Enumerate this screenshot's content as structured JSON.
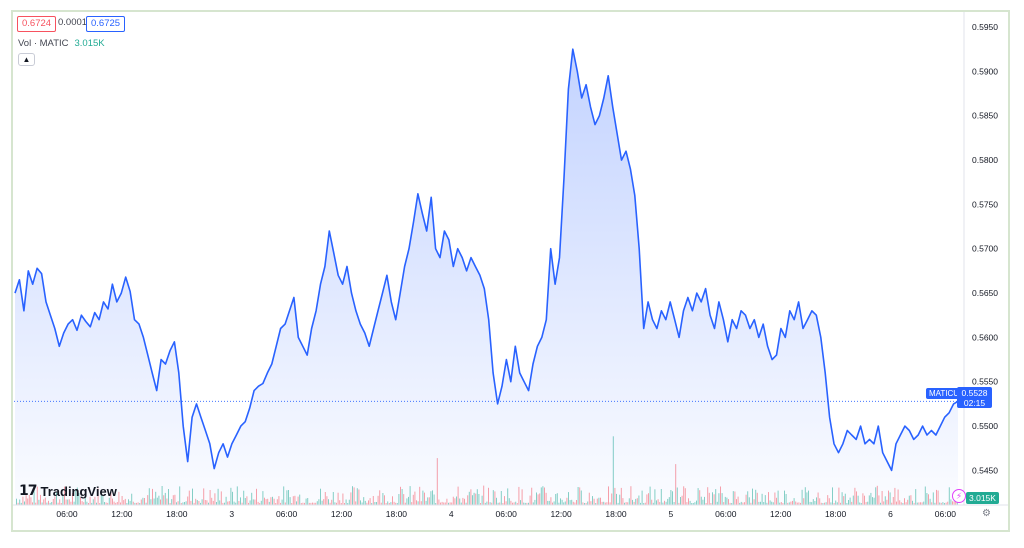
{
  "header": {
    "bid": "0.6724",
    "spread": "0.0001",
    "ask": "0.6725",
    "volume_label": "Vol · MATIC",
    "volume_value": "3.015K"
  },
  "branding": {
    "logo_text": "TradingView"
  },
  "tags": {
    "symbol": "MATICUSD",
    "last_price": "0.5528",
    "countdown": "02:15",
    "volume": "3.015K"
  },
  "colors": {
    "line": "#2962ff",
    "up_volume": "#22ab94",
    "down_volume": "#f7525f",
    "grid": "#f0f3fa"
  },
  "icons": {
    "collapse": "chevron-up-icon",
    "alert": "lightning-icon",
    "settings": "gear-icon"
  },
  "chart_data": {
    "type": "area",
    "series": [
      {
        "name": "MATICUSD",
        "values": [
          0.565,
          0.5665,
          0.563,
          0.5675,
          0.566,
          0.5678,
          0.5672,
          0.564,
          0.5625,
          0.561,
          0.559,
          0.5605,
          0.5615,
          0.562,
          0.5608,
          0.5625,
          0.5618,
          0.5612,
          0.5628,
          0.562,
          0.564,
          0.5632,
          0.566,
          0.564,
          0.565,
          0.5668,
          0.5652,
          0.562,
          0.5615,
          0.56,
          0.558,
          0.556,
          0.554,
          0.5575,
          0.557,
          0.5585,
          0.5595,
          0.556,
          0.55,
          0.546,
          0.551,
          0.5525,
          0.551,
          0.5495,
          0.548,
          0.5452,
          0.547,
          0.548,
          0.5465,
          0.548,
          0.549,
          0.55,
          0.5505,
          0.552,
          0.554,
          0.5545,
          0.5548,
          0.556,
          0.557,
          0.559,
          0.561,
          0.5615,
          0.563,
          0.5645,
          0.56,
          0.559,
          0.558,
          0.561,
          0.563,
          0.566,
          0.568,
          0.572,
          0.5695,
          0.567,
          0.566,
          0.568,
          0.565,
          0.563,
          0.5615,
          0.5605,
          0.559,
          0.561,
          0.563,
          0.565,
          0.567,
          0.564,
          0.562,
          0.565,
          0.568,
          0.57,
          0.573,
          0.5762,
          0.574,
          0.572,
          0.5758,
          0.57,
          0.569,
          0.572,
          0.571,
          0.568,
          0.57,
          0.569,
          0.5675,
          0.569,
          0.568,
          0.567,
          0.5655,
          0.562,
          0.556,
          0.5525,
          0.5545,
          0.5575,
          0.555,
          0.559,
          0.556,
          0.555,
          0.554,
          0.557,
          0.559,
          0.56,
          0.562,
          0.57,
          0.566,
          0.569,
          0.578,
          0.588,
          0.5925,
          0.59,
          0.587,
          0.5885,
          0.586,
          0.584,
          0.585,
          0.587,
          0.5895,
          0.586,
          0.583,
          0.58,
          0.581,
          0.579,
          0.576,
          0.57,
          0.561,
          0.564,
          0.562,
          0.561,
          0.563,
          0.562,
          0.564,
          0.562,
          0.56,
          0.563,
          0.5645,
          0.563,
          0.565,
          0.564,
          0.5655,
          0.5625,
          0.561,
          0.564,
          0.562,
          0.5595,
          0.562,
          0.561,
          0.563,
          0.5625,
          0.561,
          0.562,
          0.56,
          0.5615,
          0.559,
          0.5575,
          0.558,
          0.561,
          0.56,
          0.563,
          0.562,
          0.564,
          0.561,
          0.562,
          0.563,
          0.5625,
          0.56,
          0.556,
          0.551,
          0.548,
          0.547,
          0.548,
          0.5495,
          0.549,
          0.5485,
          0.55,
          0.548,
          0.5485,
          0.548,
          0.55,
          0.547,
          0.546,
          0.545,
          0.548,
          0.549,
          0.55,
          0.5495,
          0.5485,
          0.549,
          0.55,
          0.549,
          0.5495,
          0.549,
          0.55,
          0.551,
          0.5515,
          0.5525,
          0.5528
        ]
      }
    ],
    "x_ticks": [
      "06:00",
      "12:00",
      "18:00",
      "3",
      "06:00",
      "12:00",
      "18:00",
      "4",
      "06:00",
      "12:00",
      "18:00",
      "5",
      "06:00",
      "12:00",
      "18:00",
      "6",
      "06:00"
    ],
    "y_ticks": [
      "0.5450",
      "0.5500",
      "0.5550",
      "0.5600",
      "0.5650",
      "0.5700",
      "0.5750",
      "0.5800",
      "0.5850",
      "0.5900",
      "0.5950"
    ],
    "ylim": [
      0.5411,
      0.5967
    ],
    "last_value": 0.5528,
    "grid": false,
    "volume_bars": true
  }
}
